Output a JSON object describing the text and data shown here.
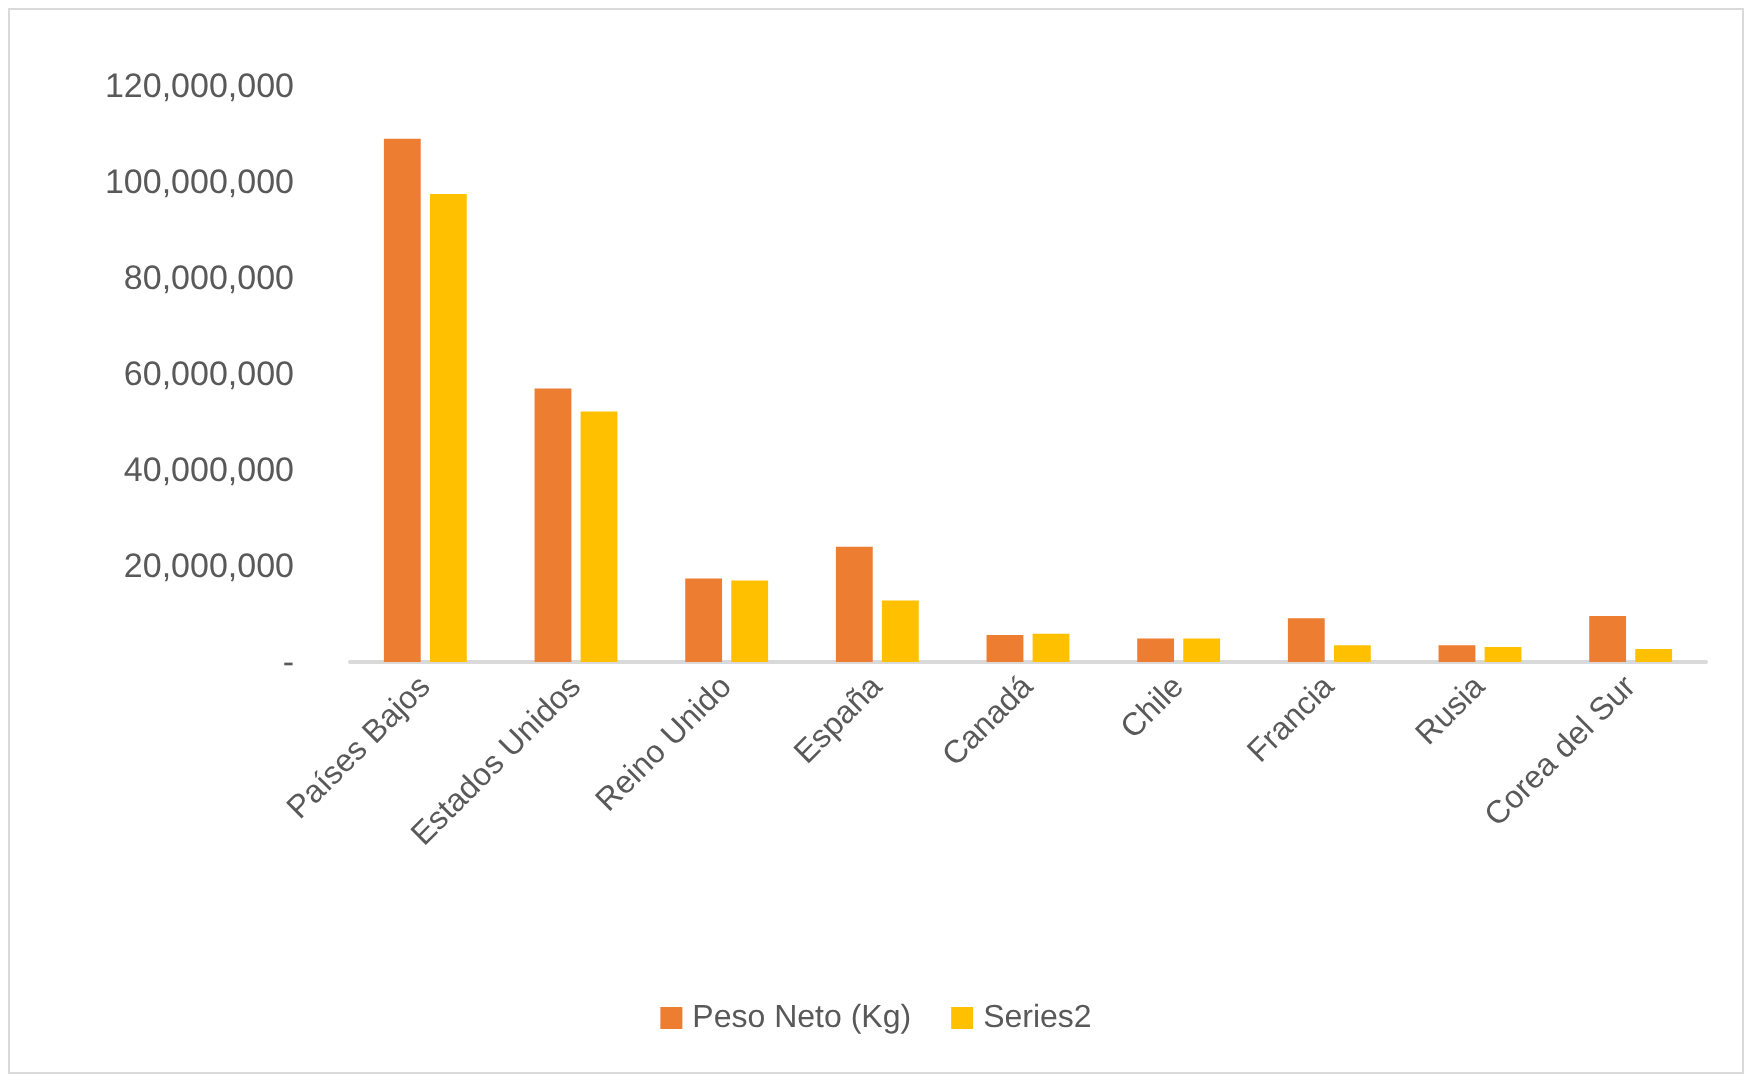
{
  "chart_data": {
    "type": "bar",
    "categories": [
      "Países Bajos",
      "Estados Unidos",
      "Reino Unido",
      "España",
      "Canadá",
      "Chile",
      "Francia",
      "Rusia",
      "Corea del Sur"
    ],
    "series": [
      {
        "name": "Peso Neto (Kg)",
        "color": "#ed7d31",
        "values": [
          109000000,
          57000000,
          17400000,
          24000000,
          5600000,
          4900000,
          9100000,
          3500000,
          9600000
        ]
      },
      {
        "name": "Series2",
        "color": "#ffc000",
        "values": [
          97500000,
          52200000,
          17000000,
          12800000,
          5900000,
          4900000,
          3500000,
          3100000,
          2700000
        ]
      }
    ],
    "ylim": [
      0,
      120000000
    ],
    "yticks": [
      {
        "value": 0,
        "label": "-"
      },
      {
        "value": 20000000,
        "label": "20,000,000"
      },
      {
        "value": 40000000,
        "label": "40,000,000"
      },
      {
        "value": 60000000,
        "label": "60,000,000"
      },
      {
        "value": 80000000,
        "label": "80,000,000"
      },
      {
        "value": 100000000,
        "label": "100,000,000"
      },
      {
        "value": 120000000,
        "label": "120,000,000"
      }
    ],
    "grid": false,
    "legend": "bottom"
  }
}
